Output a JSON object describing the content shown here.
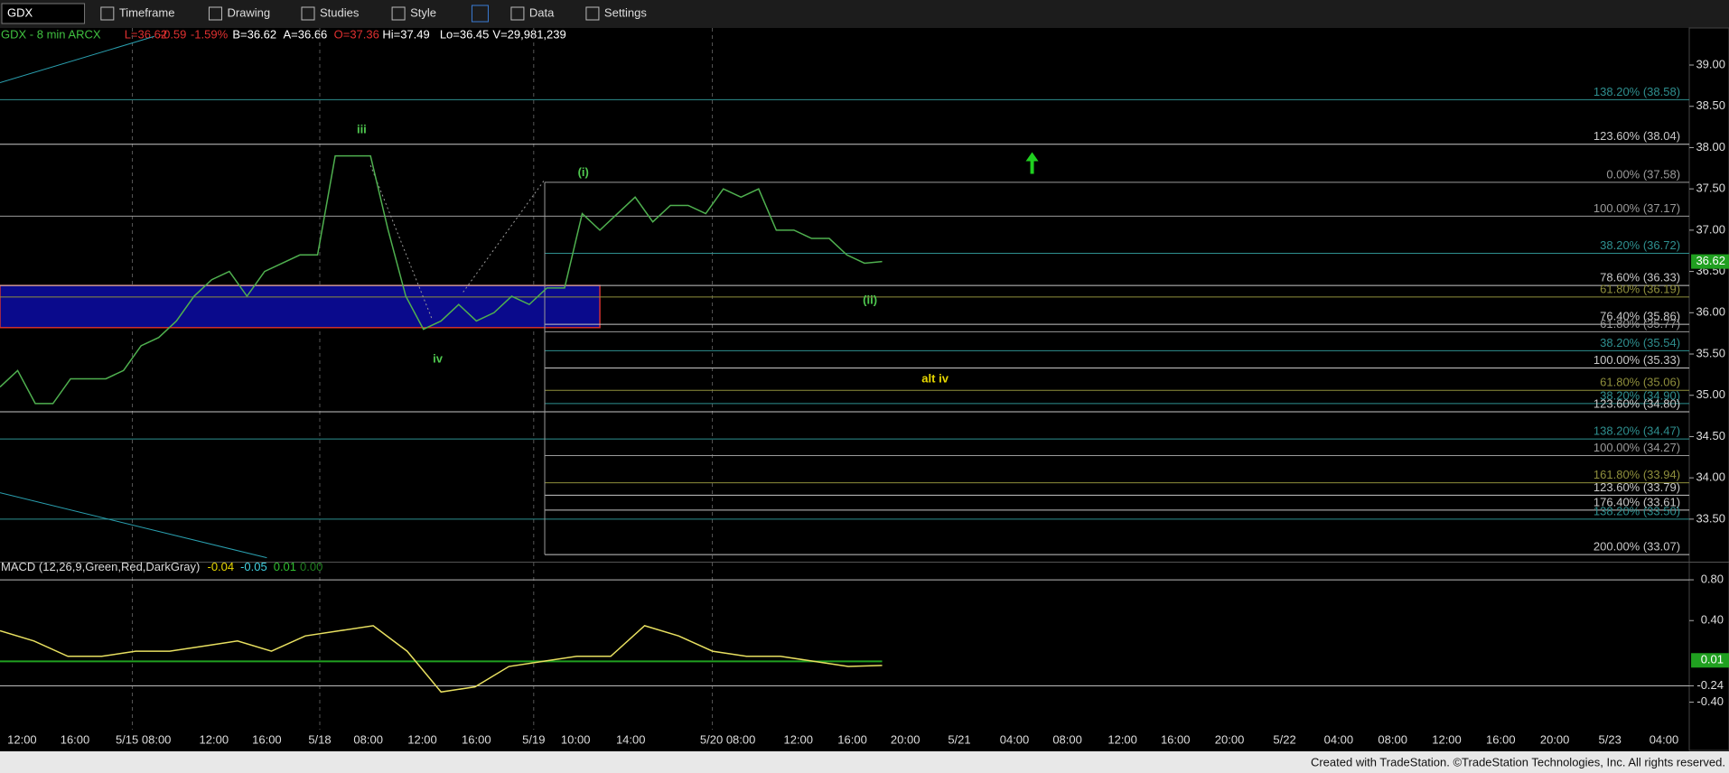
{
  "toolbar": {
    "symbol": "GDX",
    "menus": [
      "Timeframe",
      "Drawing",
      "Studies",
      "Style",
      "Data",
      "Settings"
    ]
  },
  "info": {
    "symbol_line": "GDX - 8 min  ARCX",
    "last": "L=36.62",
    "change": "-0.59",
    "pct": "-1.59%",
    "bid": "B=36.62",
    "ask": "A=36.66",
    "open": "O=37.36",
    "high": "Hi=37.49",
    "low": "Lo=36.45",
    "volume": "V=29,981,239"
  },
  "price_axis": {
    "ticks": [
      {
        "value": 39,
        "label": "39.00"
      },
      {
        "value": 38.5,
        "label": "38.50"
      },
      {
        "value": 38,
        "label": "38.00"
      },
      {
        "value": 37.5,
        "label": "37.50"
      },
      {
        "value": 37,
        "label": "37.00"
      },
      {
        "value": 36.5,
        "label": "36.50"
      },
      {
        "value": 36,
        "label": "36.00"
      },
      {
        "value": 35.5,
        "label": "35.50"
      },
      {
        "value": 35,
        "label": "35.00"
      },
      {
        "value": 34.5,
        "label": "34.50"
      },
      {
        "value": 34,
        "label": "34.00"
      },
      {
        "value": 33.5,
        "label": "33.50"
      }
    ],
    "current": {
      "value": 36.62,
      "label": "36.62"
    }
  },
  "time_axis": [
    "12:00",
    "16:00",
    "5/15 08:00",
    "12:00",
    "16:00",
    "5/18",
    "08:00",
    "12:00",
    "16:00",
    "5/19",
    "10:00",
    "14:00",
    "5/20 08:00",
    "12:00",
    "16:00",
    "20:00",
    "5/21",
    "04:00",
    "08:00",
    "12:00",
    "16:00",
    "20:00",
    "5/22",
    "04:00",
    "08:00",
    "12:00",
    "16:00",
    "20:00",
    "5/23",
    "04:00"
  ],
  "fib_levels": [
    {
      "label": "138.20% (38.58)",
      "price": 38.58,
      "color": "#2e8f8f"
    },
    {
      "label": "123.60% (38.04)",
      "price": 38.04,
      "color": "#c8c8c8"
    },
    {
      "label": "0.00% (37.58)",
      "price": 37.58,
      "color": "#9a9a9a"
    },
    {
      "label": "100.00% (37.17)",
      "price": 37.17,
      "color": "#9a9a9a"
    },
    {
      "label": "38.20% (36.72)",
      "price": 36.72,
      "color": "#2e8f8f"
    },
    {
      "label": "78.60% (36.33)",
      "price": 36.33,
      "color": "#c8c8c8"
    },
    {
      "label": "61.80% (36.19)",
      "price": 36.19,
      "color": "#8f8f3c"
    },
    {
      "label": "76.40% (35.86)",
      "price": 35.86,
      "color": "#c8c8c8"
    },
    {
      "label": "61.80% (35.77)",
      "price": 35.77,
      "color": "#9a9a9a"
    },
    {
      "label": "38.20% (35.54)",
      "price": 35.54,
      "color": "#2e8f8f"
    },
    {
      "label": "100.00% (35.33)",
      "price": 35.33,
      "color": "#c8c8c8"
    },
    {
      "label": "61.80% (35.06)",
      "price": 35.06,
      "color": "#8f8f3c"
    },
    {
      "label": "38.20% (34.90)",
      "price": 34.9,
      "color": "#2e8f8f"
    },
    {
      "label": "123.60% (34.80)",
      "price": 34.8,
      "color": "#c8c8c8"
    },
    {
      "label": "138.20% (34.47)",
      "price": 34.47,
      "color": "#2e8f8f"
    },
    {
      "label": "100.00% (34.27)",
      "price": 34.27,
      "color": "#9a9a9a"
    },
    {
      "label": "161.80% (33.94)",
      "price": 33.94,
      "color": "#8f8f3c"
    },
    {
      "label": "123.60% (33.79)",
      "price": 33.79,
      "color": "#c8c8c8"
    },
    {
      "label": "176.40% (33.61)",
      "price": 33.61,
      "color": "#c8c8c8"
    },
    {
      "label": "138.20% (33.50)",
      "price": 33.5,
      "color": "#2e8f8f"
    },
    {
      "label": "200.00% (33.07)",
      "price": 33.07,
      "color": "#c8c8c8"
    }
  ],
  "annotations": [
    {
      "text": "iii",
      "color": "#4fc84f"
    },
    {
      "text": "iv",
      "color": "#4fc84f"
    },
    {
      "text": "(i)",
      "color": "#4fc84f"
    },
    {
      "text": "(ii)",
      "color": "#4fc84f"
    },
    {
      "text": "alt iv",
      "color": "#e8d800"
    }
  ],
  "price_series": [
    35.1,
    35.3,
    34.9,
    34.9,
    35.2,
    35.2,
    35.2,
    35.3,
    35.6,
    35.7,
    35.9,
    36.2,
    36.4,
    36.5,
    36.2,
    36.5,
    36.6,
    36.7,
    36.7,
    37.9,
    37.9,
    37.9,
    37.0,
    36.2,
    35.8,
    35.9,
    36.1,
    35.9,
    36.0,
    36.2,
    36.1,
    36.3,
    36.3,
    37.2,
    37.0,
    37.2,
    37.4,
    37.1,
    37.3,
    37.3,
    37.2,
    37.5,
    37.4,
    37.5,
    37.0,
    37.0,
    36.9,
    36.9,
    36.7,
    36.6,
    36.62
  ],
  "macd": {
    "title": "MACD (12,26,9,Green,Red,DarkGray)",
    "readings": [
      {
        "text": "-0.04",
        "color": "#e8d800"
      },
      {
        "text": "-0.05",
        "color": "#40d0e0"
      },
      {
        "text": "0.01",
        "color": "#30c030"
      },
      {
        "text": "0.00",
        "color": "#208020"
      }
    ],
    "ticks": [
      {
        "value": 0.8,
        "label": "0.80"
      },
      {
        "value": 0.4,
        "label": "0.40"
      },
      {
        "value": -0.24,
        "label": "-0.24"
      },
      {
        "value": -0.4,
        "label": "-0.40"
      }
    ],
    "current": {
      "value": 0.01,
      "label": "0.01"
    },
    "series": [
      0.3,
      0.2,
      0.05,
      0.05,
      0.1,
      0.1,
      0.15,
      0.2,
      0.1,
      0.25,
      0.3,
      0.35,
      0.1,
      -0.3,
      -0.25,
      -0.05,
      0.0,
      0.05,
      0.05,
      0.35,
      0.25,
      0.1,
      0.05,
      0.05,
      0.0,
      -0.05,
      -0.04
    ]
  },
  "footer": "Created with TradeStation. ©TradeStation Technologies, Inc. All rights reserved."
}
